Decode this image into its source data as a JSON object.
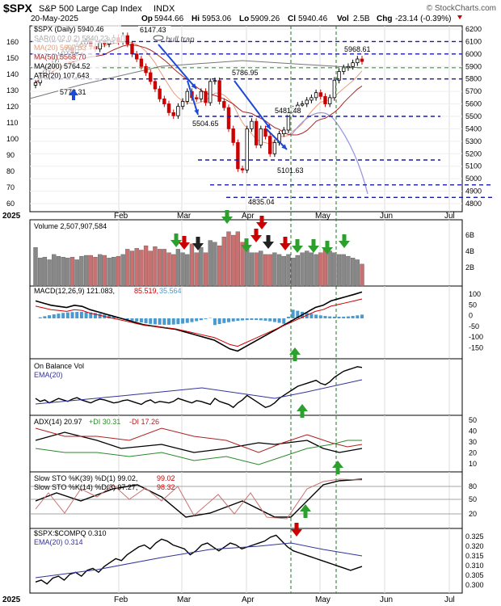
{
  "header": {
    "symbol": "$SPX",
    "name": "S&P 500 Large Cap Index",
    "exchange": "INDX",
    "date": "20-May-2025",
    "open_label": "Op",
    "open": "5944.66",
    "high_label": "Hi",
    "high": "5953.06",
    "low_label": "Lo",
    "low": "5909.26",
    "close_label": "Cl",
    "close": "5940.46",
    "vol_label": "Vol",
    "vol": "2.5B",
    "chg_label": "Chg",
    "chg": "-23.14 (-0.39%)",
    "brand": "© StockCharts.com"
  },
  "colors": {
    "up": "#2ca02c",
    "down": "#cc0000",
    "ma20": "#e6a07a",
    "ma50": "#aa2222",
    "ma200": "#777777",
    "sar": "#cccccc",
    "blue": "#1a1aaa",
    "arrowBlue": "#1b49d8",
    "grid": "#dddddd"
  },
  "months": [
    "2025",
    "Feb",
    "Mar",
    "Apr",
    "May",
    "Jun",
    "Jul"
  ],
  "price_panel": {
    "legend": [
      "$SPX (Daily) 5940.46",
      "SAR(0.02,0.2) 5840.23",
      "MA(20) 5697.53",
      "MA(50) 5568.70",
      "MA(200) 5764.52",
      "ATR(20) 107.643"
    ],
    "left_axis": [
      "160",
      "150",
      "140",
      "130",
      "120",
      "110",
      "100",
      "90",
      "80",
      "70",
      "60"
    ],
    "right_axis": [
      "6200",
      "6100",
      "6000",
      "5900",
      "5800",
      "5700",
      "5600",
      "5500",
      "5400",
      "5300",
      "5200",
      "5100",
      "5000",
      "4900",
      "4800"
    ],
    "labels": [
      "6147.43",
      "5786.95",
      "5504.65",
      "5101.63",
      "4835.04",
      "5968.61",
      "5773.31",
      "5481.48"
    ],
    "annotation": "bull trap"
  },
  "volume_panel": {
    "legend": "Volume 2,507,907,584",
    "right_axis": [
      "6B",
      "4B",
      "2B"
    ]
  },
  "macd_panel": {
    "legend": "MACD(12,26,9) 121.083,",
    "v2": "85.519,",
    "v3": "35.564",
    "right_axis": [
      "100",
      "50",
      "0",
      "-50",
      "-100",
      "-150"
    ]
  },
  "obv_panel": {
    "legend": "On Balance Vol",
    "legend2": "EMA(20)"
  },
  "adx_panel": {
    "legend": "ADX(14) 20.97",
    "pdi": "+DI 30.31",
    "mdi": "-DI 17.26",
    "right_axis": [
      "50",
      "40",
      "30",
      "20",
      "10"
    ]
  },
  "sto_panel": {
    "legend1a": "Slow STO %K(39) %D(1) 99.02,",
    "legend1b": "99.02",
    "legend2a": "Slow STO %K(14) %D(3) 97.27,",
    "legend2b": "98.32",
    "right_axis": [
      "80",
      "50",
      "20"
    ]
  },
  "rel_panel": {
    "legend": "$SPX:$COMPQ 0.310",
    "legend2": "EMA(20) 0.314",
    "right_axis": [
      "0.325",
      "0.320",
      "0.315",
      "0.310",
      "0.305",
      "0.300"
    ]
  },
  "chart_data": {
    "type": "candlestick",
    "title": "$SPX S&P 500 Large Cap Index INDX",
    "x_labels": [
      "2025",
      "Feb",
      "Mar",
      "Apr",
      "May",
      "Jun",
      "Jul"
    ],
    "ylim": [
      4800,
      6200
    ],
    "closes": [
      5770,
      5830,
      5870,
      5900,
      5960,
      5990,
      6020,
      6050,
      6010,
      6060,
      6080,
      6100,
      6060,
      6040,
      6090,
      6080,
      6110,
      6130,
      6100,
      6147,
      6080,
      6000,
      5960,
      5900,
      5850,
      5780,
      5720,
      5640,
      5600,
      5530,
      5505,
      5580,
      5620,
      5700,
      5650,
      5640,
      5700,
      5610,
      5780,
      5787,
      5620,
      5570,
      5400,
      5290,
      5080,
      5070,
      5400,
      5460,
      5270,
      5400,
      5340,
      5200,
      5290,
      5360,
      5390,
      5530,
      5560,
      5590,
      5600,
      5630,
      5650,
      5690,
      5660,
      5600,
      5650,
      5790,
      5860,
      5890,
      5900,
      5930,
      5960,
      5940
    ],
    "volume": [
      4.4,
      3.2,
      3.3,
      3.0,
      3.6,
      3.4,
      3.3,
      3.2,
      3.3,
      3.0,
      3.4,
      3.5,
      3.5,
      3.3,
      3.6,
      3.5,
      3.2,
      3.3,
      3.4,
      3.6,
      4.2,
      4.0,
      4.3,
      4.1,
      4.6,
      4.0,
      4.5,
      4.2,
      4.2,
      3.8,
      3.6,
      4.2,
      3.8,
      3.6,
      4.8,
      3.8,
      4.4,
      3.8,
      5.2,
      5.0,
      4.6,
      5.6,
      6.2,
      5.8,
      6.2,
      5.0,
      4.4,
      3.8,
      3.8,
      4.0,
      3.6,
      3.6,
      3.8,
      3.6,
      3.4,
      3.6,
      3.2,
      3.5,
      3.8,
      4.0,
      3.8,
      3.6,
      3.8,
      4.2,
      4.0,
      3.8,
      3.6,
      3.6,
      3.4,
      3.2,
      3.0,
      2.5
    ],
    "macd_last": 121.083,
    "signal_last": 85.519,
    "hist_last": 35.564,
    "adx_last": 20.97,
    "pdi_last": 30.31,
    "mdi_last": 17.26,
    "sto39_last": 99.02,
    "sto14_k_last": 97.27,
    "sto14_d_last": 98.32,
    "ratio_last": 0.31,
    "ratio_ema_last": 0.314
  }
}
